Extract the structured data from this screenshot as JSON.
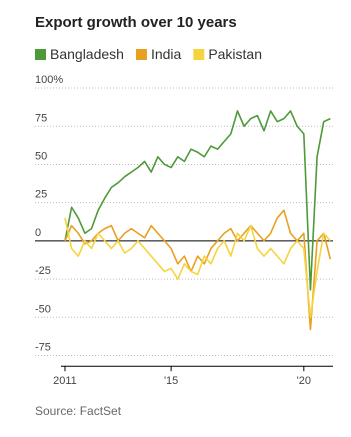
{
  "chart_data": {
    "type": "line",
    "title": "Export growth over 10 years",
    "x": [
      2011,
      2011.25,
      2011.5,
      2011.75,
      2012,
      2012.25,
      2012.5,
      2012.75,
      2013,
      2013.25,
      2013.5,
      2013.75,
      2014,
      2014.25,
      2014.5,
      2014.75,
      2015,
      2015.25,
      2015.5,
      2015.75,
      2016,
      2016.25,
      2016.5,
      2016.75,
      2017,
      2017.25,
      2017.5,
      2017.75,
      2018,
      2018.25,
      2018.5,
      2018.75,
      2019,
      2019.25,
      2019.5,
      2019.75,
      2020,
      2020.25,
      2020.5,
      2020.75,
      2021
    ],
    "series": [
      {
        "name": "Bangladesh",
        "color": "#4e9a3a",
        "values": [
          0,
          22,
          15,
          5,
          8,
          20,
          28,
          35,
          38,
          42,
          45,
          48,
          52,
          45,
          55,
          50,
          48,
          55,
          52,
          60,
          58,
          55,
          62,
          60,
          65,
          70,
          85,
          75,
          80,
          82,
          72,
          85,
          78,
          80,
          85,
          75,
          70,
          -32,
          55,
          78,
          80
        ]
      },
      {
        "name": "India",
        "color": "#e8a020",
        "values": [
          0,
          10,
          5,
          -2,
          0,
          5,
          8,
          10,
          0,
          5,
          8,
          5,
          2,
          10,
          5,
          0,
          -5,
          -15,
          -10,
          -20,
          -10,
          -15,
          -5,
          0,
          5,
          8,
          0,
          5,
          10,
          5,
          0,
          5,
          15,
          20,
          5,
          0,
          5,
          -58,
          0,
          5,
          -12
        ]
      },
      {
        "name": "Pakistan",
        "color": "#f5d440",
        "values": [
          15,
          -5,
          -10,
          0,
          -5,
          5,
          0,
          -5,
          0,
          -8,
          -5,
          0,
          -5,
          -10,
          -15,
          -20,
          -18,
          -25,
          -15,
          -20,
          -22,
          -10,
          -15,
          -5,
          0,
          -10,
          5,
          0,
          10,
          -5,
          -10,
          -5,
          -10,
          -15,
          -5,
          0,
          -5,
          -50,
          -20,
          5,
          0
        ]
      }
    ],
    "xlim": [
      2010.85,
      2021.1
    ],
    "xticks": [
      {
        "value": 2011,
        "label": "2011"
      },
      {
        "value": 2015,
        "label": "'15"
      },
      {
        "value": 2020,
        "label": "'20"
      }
    ],
    "ylim": [
      -82,
      105
    ],
    "yticks": [
      {
        "value": 100,
        "label": "100%"
      },
      75,
      50,
      25,
      0,
      -25,
      -50,
      -75
    ],
    "grid": true,
    "source": "Source: FactSet"
  }
}
